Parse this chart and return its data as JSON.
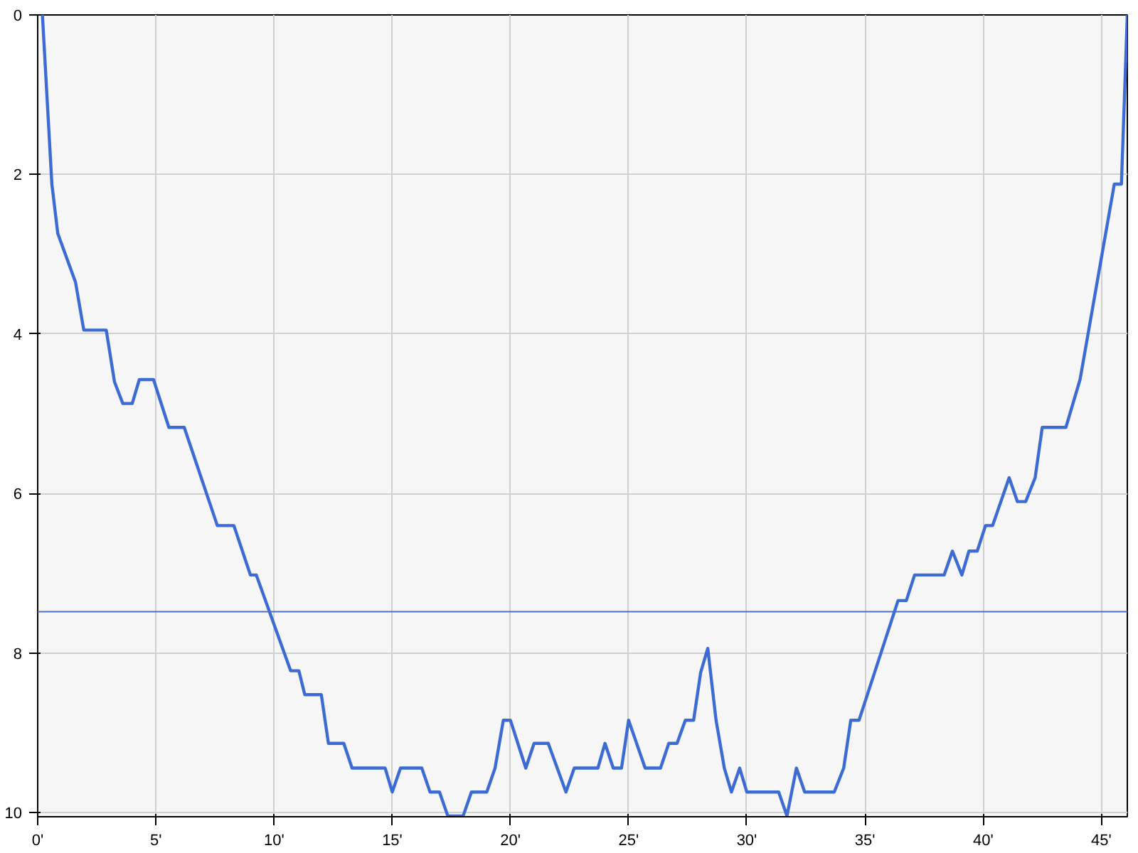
{
  "chart_data": {
    "type": "line",
    "xlim": [
      0,
      46.1
    ],
    "ylim": [
      10.05,
      0
    ],
    "xticks": [
      {
        "value": 0,
        "label": "0'"
      },
      {
        "value": 5,
        "label": "5'"
      },
      {
        "value": 10,
        "label": "10'"
      },
      {
        "value": 15,
        "label": "15'"
      },
      {
        "value": 20,
        "label": "20'"
      },
      {
        "value": 25,
        "label": "25'"
      },
      {
        "value": 30,
        "label": "30'"
      },
      {
        "value": 35,
        "label": "35'"
      },
      {
        "value": 40,
        "label": "40'"
      },
      {
        "value": 45,
        "label": "45'"
      }
    ],
    "yticks": [
      0,
      2,
      4,
      6,
      8,
      10
    ],
    "grid": true,
    "marker": "none",
    "line_style": "solid",
    "ref_lines": [
      {
        "axis": "y",
        "value": 7.48,
        "color": "#4a70c0"
      }
    ],
    "series": [
      {
        "color": "#3d6bd4",
        "x": [
          0.2,
          0.6,
          0.85,
          1.6,
          1.95,
          2.9,
          3.25,
          3.6,
          4.0,
          4.3,
          4.9,
          5.55,
          6.2,
          7.6,
          8.3,
          9.0,
          9.25,
          10.7,
          11.05,
          11.3,
          12.0,
          12.3,
          12.95,
          13.3,
          14.7,
          15.0,
          15.35,
          16.25,
          16.6,
          17.0,
          17.35,
          18.0,
          18.35,
          19.0,
          19.35,
          19.7,
          20.0,
          20.65,
          21.0,
          21.6,
          22.35,
          22.7,
          23.7,
          24.0,
          24.35,
          24.7,
          25.0,
          25.7,
          26.35,
          26.7,
          27.05,
          27.4,
          27.75,
          28.05,
          28.35,
          28.7,
          29.05,
          29.35,
          29.7,
          30.0,
          31.35,
          31.7,
          32.1,
          32.45,
          33.7,
          34.1,
          34.4,
          34.75,
          36.4,
          36.75,
          37.1,
          38.35,
          38.7,
          39.1,
          39.4,
          39.75,
          40.1,
          40.4,
          41.1,
          41.45,
          41.8,
          42.2,
          42.5,
          43.5,
          44.1,
          45.55,
          45.85,
          46.1
        ],
        "values": [
          0,
          2.12,
          2.74,
          3.35,
          3.95,
          3.95,
          4.6,
          4.87,
          4.87,
          4.57,
          4.57,
          5.17,
          5.17,
          6.4,
          6.4,
          7.02,
          7.02,
          8.22,
          8.22,
          8.52,
          8.52,
          9.13,
          9.13,
          9.44,
          9.44,
          9.74,
          9.44,
          9.44,
          9.74,
          9.74,
          10.04,
          10.04,
          9.74,
          9.74,
          9.44,
          8.84,
          8.84,
          9.44,
          9.13,
          9.13,
          9.74,
          9.44,
          9.44,
          9.13,
          9.44,
          9.44,
          8.84,
          9.44,
          9.44,
          9.13,
          9.13,
          8.84,
          8.84,
          8.24,
          7.94,
          8.84,
          9.44,
          9.74,
          9.44,
          9.74,
          9.74,
          10.04,
          9.44,
          9.74,
          9.74,
          9.44,
          8.84,
          8.84,
          7.34,
          7.34,
          7.02,
          7.02,
          6.72,
          7.02,
          6.72,
          6.72,
          6.4,
          6.4,
          5.8,
          6.1,
          6.1,
          5.8,
          5.17,
          5.17,
          4.57,
          2.12,
          2.12,
          0
        ]
      }
    ]
  }
}
